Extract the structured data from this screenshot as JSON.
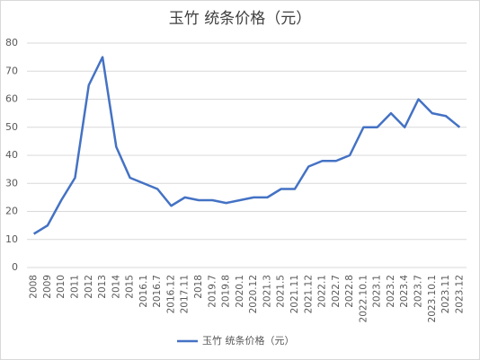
{
  "chart_data": {
    "type": "line",
    "title": "玉竹 统条价格（元）",
    "categories": [
      "2008",
      "2009",
      "2010",
      "2011",
      "2012",
      "2013",
      "2014",
      "2015",
      "2016.1",
      "2016.7",
      "2016.12",
      "2017.11",
      "2018",
      "2019.7",
      "2019.8",
      "2020.1",
      "2020.12",
      "2021.3",
      "2021.5",
      "2021.11",
      "2021.12",
      "2022.1",
      "2022.7",
      "2022.8",
      "2022.10.1",
      "2023.1",
      "2023.2",
      "2023.4",
      "2023.7",
      "2023.10.1",
      "2023.11",
      "2023.12"
    ],
    "series": [
      {
        "name": "玉竹 统条价格（元）",
        "color": "#4472c4",
        "values": [
          12,
          15,
          24,
          32,
          65,
          75,
          43,
          32,
          30,
          28,
          22,
          25,
          24,
          24,
          23,
          24,
          25,
          25,
          28,
          28,
          36,
          38,
          38,
          40,
          50,
          50,
          55,
          50,
          60,
          55,
          54,
          50
        ]
      }
    ],
    "ylim": [
      0,
      80
    ],
    "yticks": [
      0,
      10,
      20,
      30,
      40,
      50,
      60,
      70,
      80
    ],
    "grid": true,
    "legend": "bottom"
  }
}
